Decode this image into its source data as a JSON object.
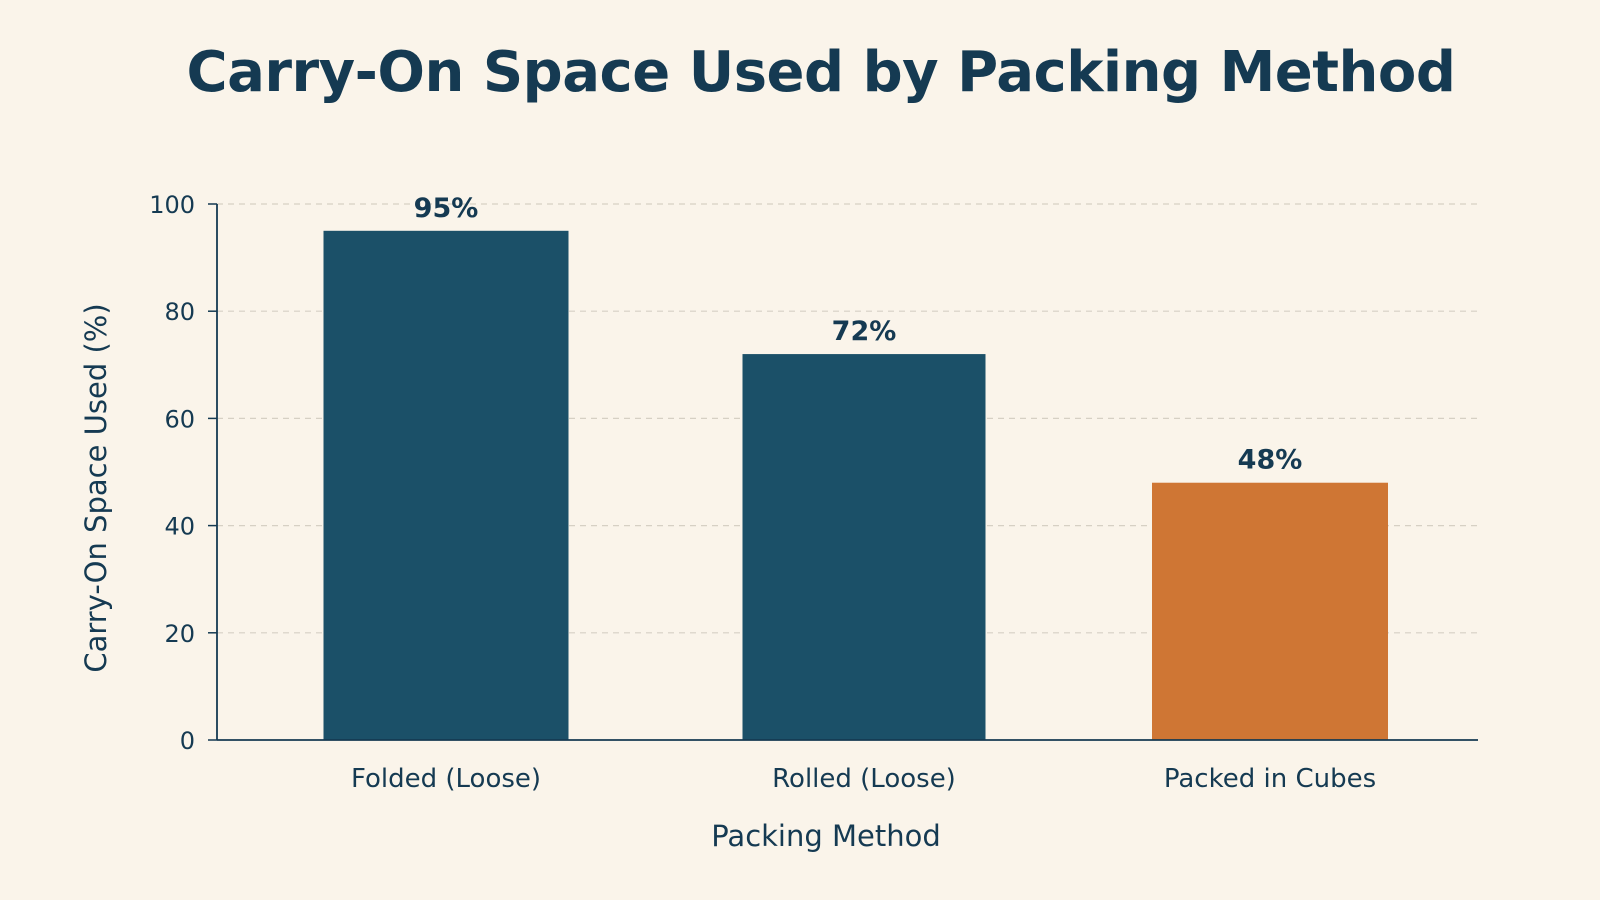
{
  "chart_data": {
    "type": "bar",
    "title": "Carry-On Space Used by Packing Method",
    "xlabel": "Packing Method",
    "ylabel": "Carry-On Space Used (%)",
    "categories": [
      "Folded (Loose)",
      "Rolled (Loose)",
      "Packed in Cubes"
    ],
    "values": [
      95,
      72,
      48
    ],
    "data_labels": [
      "95%",
      "72%",
      "48%"
    ],
    "bar_colors": [
      "#1b5068",
      "#1b5068",
      "#cf7634"
    ],
    "ylim": [
      0,
      100
    ],
    "yticks": [
      0,
      20,
      40,
      60,
      80,
      100
    ],
    "grid": true,
    "legend": "none"
  },
  "colors": {
    "background": "#faf4ea",
    "text": "#153a52",
    "grid": "#d6d0c4",
    "axis": "#153a52"
  }
}
